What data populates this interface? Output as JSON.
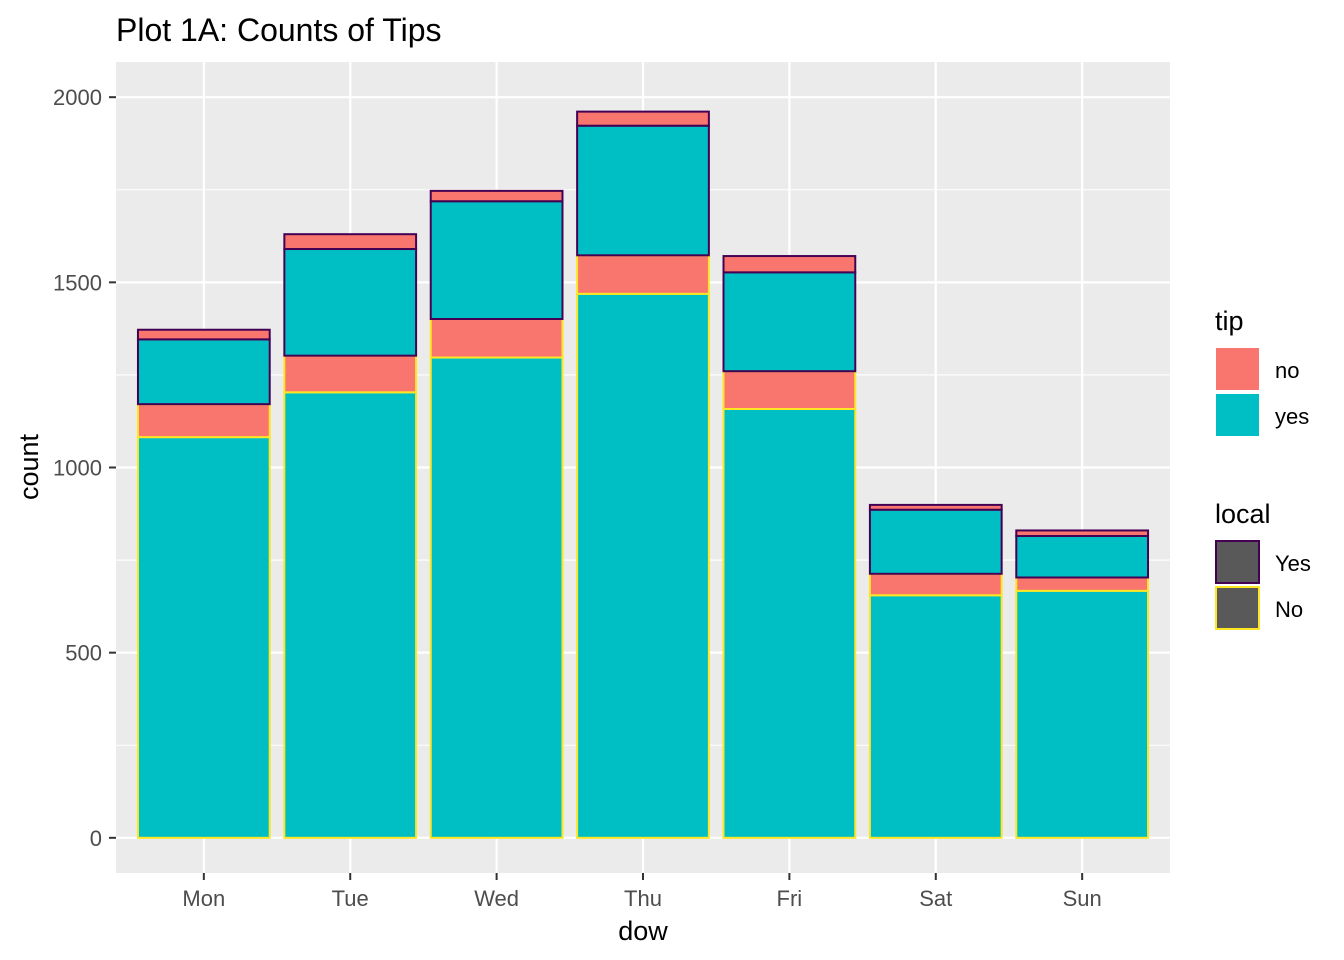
{
  "chart_data": {
    "type": "bar",
    "title": "Plot 1A: Counts of Tips",
    "xlabel": "dow",
    "ylabel": "count",
    "categories": [
      "Mon",
      "Tue",
      "Wed",
      "Thu",
      "Fri",
      "Sat",
      "Sun"
    ],
    "ylim": [
      -95,
      2095
    ],
    "yticks": [
      0,
      500,
      1000,
      1500,
      2000
    ],
    "stacking": "stacked",
    "grid": true,
    "legend_position": "right",
    "series": [
      {
        "local": "No",
        "tip": "yes",
        "values": [
          1082,
          1203,
          1297,
          1469,
          1158,
          655,
          667
        ]
      },
      {
        "local": "No",
        "tip": "no",
        "values": [
          89,
          99,
          104,
          104,
          102,
          58,
          36
        ]
      },
      {
        "local": "Yes",
        "tip": "yes",
        "values": [
          175,
          288,
          318,
          350,
          267,
          173,
          112
        ]
      },
      {
        "local": "Yes",
        "tip": "no",
        "values": [
          26,
          40,
          28,
          38,
          44,
          13,
          15
        ]
      }
    ],
    "legends": [
      {
        "title": "tip",
        "items": [
          {
            "label": "no",
            "color": "#F8766D"
          },
          {
            "label": "yes",
            "color": "#00BFC4"
          }
        ]
      },
      {
        "title": "local",
        "items": [
          {
            "label": "Yes",
            "color": "#440154"
          },
          {
            "label": "No",
            "color": "#FDE725"
          }
        ]
      }
    ],
    "colors": {
      "panel_bg": "#EBEBEB",
      "grid_major": "#FFFFFF",
      "tip_no": "#F8766D",
      "tip_yes": "#00BFC4",
      "local_yes_outline": "#440154",
      "local_no_outline": "#FDE725",
      "legend_key_fill": "#595959"
    }
  }
}
